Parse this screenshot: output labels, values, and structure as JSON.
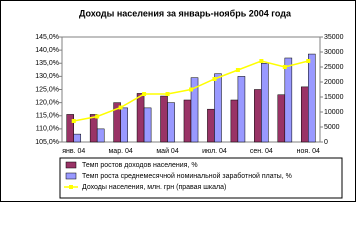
{
  "chart_data": {
    "type": "bar_line",
    "title": "Доходы населения за январь-ноябрь 2004 года",
    "categories": [
      "янв. 04",
      null,
      "мар. 04",
      null,
      "май 04",
      null,
      "июл. 04",
      null,
      "сен. 04",
      null,
      "ноя. 04"
    ],
    "series": [
      {
        "name": "Темп ростов доходов населения, %",
        "type": "bar",
        "color": "#993366",
        "values": [
          115.5,
          115.5,
          120,
          123.5,
          122.5,
          121,
          117.5,
          121,
          125,
          123,
          126
        ]
      },
      {
        "name": "Темп роста среднемесячной номинальной заработной платы, %",
        "type": "bar",
        "color": "#9999ff",
        "values": [
          108,
          110,
          118,
          118,
          120,
          129.5,
          131,
          130,
          135,
          137,
          138.5
        ]
      },
      {
        "name": "Доходы населения, млн. грн (правая шкала)",
        "type": "line",
        "axis": "y2",
        "color": "#ffff00",
        "values": [
          7000,
          8500,
          11500,
          16000,
          16000,
          17500,
          21000,
          24000,
          27000,
          25000,
          27000
        ]
      }
    ],
    "ylim": [
      105,
      145
    ],
    "yticks": [
      {
        "value": 105,
        "label": "105,0%"
      },
      {
        "value": 110,
        "label": "110,0%"
      },
      {
        "value": 115,
        "label": "115,0%"
      },
      {
        "value": 120,
        "label": "120,0%"
      },
      {
        "value": 125,
        "label": "125,0%"
      },
      {
        "value": 130,
        "label": "130,0%"
      },
      {
        "value": 135,
        "label": "135,0%"
      },
      {
        "value": 140,
        "label": "140,0%"
      },
      {
        "value": 145,
        "label": "145,0%"
      }
    ],
    "y2lim": [
      0,
      35000
    ],
    "y2ticks": [
      0,
      5000,
      10000,
      15000,
      20000,
      25000,
      30000,
      35000
    ]
  }
}
